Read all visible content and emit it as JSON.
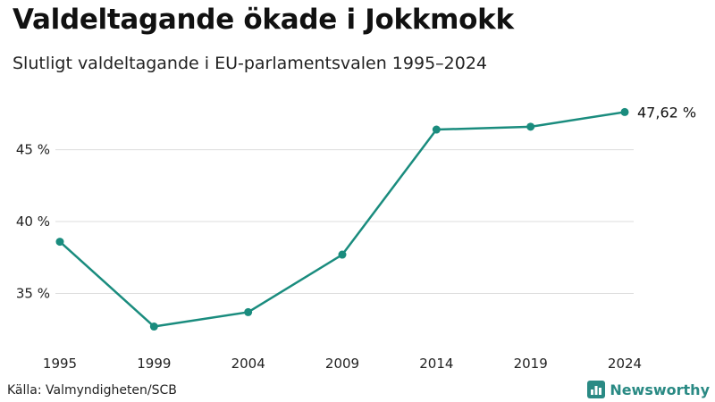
{
  "header": {
    "title": "Valdeltagande ökade i Jokkmokk",
    "subtitle": "Slutligt valdeltagande i EU-parlamentsvalen 1995–2024"
  },
  "footer": {
    "source": "Källa: Valmyndigheten/SCB",
    "brand": "Newsworthy",
    "brand_icon": "bar-chart-logo-icon"
  },
  "colors": {
    "line": "#1a8c7e",
    "grid": "#dddddd",
    "brand": "#2a8a84"
  },
  "chart_data": {
    "type": "line",
    "title": "Valdeltagande ökade i Jokkmokk",
    "subtitle": "Slutligt valdeltagande i EU-parlamentsvalen 1995–2024",
    "xlabel": "",
    "ylabel": "",
    "x": [
      "1995",
      "1999",
      "2004",
      "2009",
      "2014",
      "2019",
      "2024"
    ],
    "series": [
      {
        "name": "Valdeltagande",
        "values": [
          38.6,
          32.7,
          33.7,
          37.7,
          46.4,
          46.6,
          47.62
        ]
      }
    ],
    "yticks": [
      35,
      40,
      45
    ],
    "ytick_labels": [
      "35 %",
      "40 %",
      "45 %"
    ],
    "ylim": [
      31.8,
      49.2
    ],
    "end_label": "47,62 %",
    "grid": true,
    "legend": "none"
  }
}
